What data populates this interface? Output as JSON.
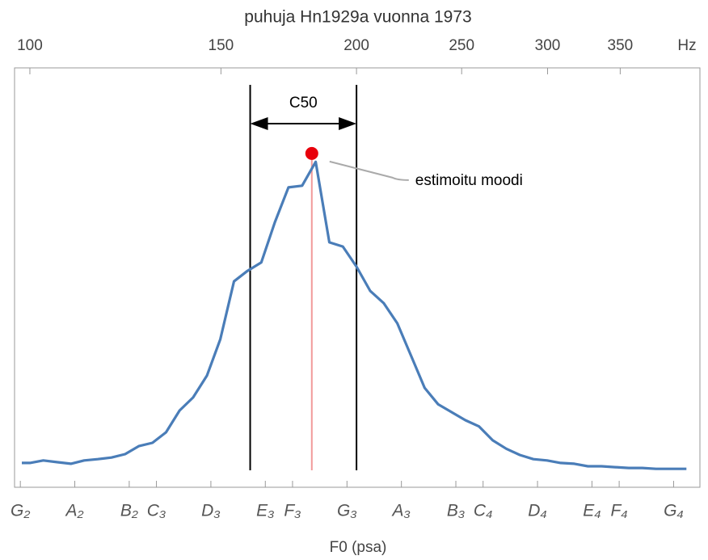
{
  "chart_data": {
    "type": "line",
    "title": "puhuja Hn1929a vuonna 1973",
    "x_label": "F0 (psa)",
    "x2_unit_label": "Hz",
    "log_x": true,
    "color": "#4a7db8",
    "x": [
      98.3,
      100,
      102.9,
      105.9,
      109.1,
      112.2,
      115.5,
      118.9,
      122.4,
      126.0,
      129.7,
      133.5,
      137.4,
      141.4,
      145.6,
      149.8,
      154.2,
      158.7,
      163.4,
      168.2,
      173.1,
      178.2,
      183.4,
      188.8,
      194.3,
      200,
      205.9,
      211.9,
      218.1,
      224.5,
      231.1,
      237.8,
      244.8,
      252.0,
      259.4,
      267.0,
      274.8,
      282.8,
      291.1,
      299.7,
      308.4,
      317.5,
      326.8,
      336.4,
      346.2,
      356.4,
      366.8,
      377.6,
      388.6,
      400,
      402.8
    ],
    "values": [
      0.058,
      0.058,
      0.064,
      0.06,
      0.056,
      0.064,
      0.067,
      0.071,
      0.079,
      0.098,
      0.106,
      0.131,
      0.183,
      0.214,
      0.266,
      0.353,
      0.491,
      0.516,
      0.536,
      0.632,
      0.715,
      0.719,
      0.776,
      0.584,
      0.574,
      0.526,
      0.468,
      0.439,
      0.391,
      0.314,
      0.237,
      0.198,
      0.179,
      0.16,
      0.145,
      0.112,
      0.092,
      0.077,
      0.067,
      0.064,
      0.058,
      0.056,
      0.05,
      0.05,
      0.048,
      0.046,
      0.046,
      0.044,
      0.044,
      0.044,
      0.044
    ],
    "xlim": [
      96.8,
      414.5
    ],
    "ylim": [
      0,
      1
    ],
    "x2ticks": [
      100,
      150,
      200,
      250,
      300,
      350
    ],
    "xticks": [
      {
        "value": 98,
        "label": "G₂"
      },
      {
        "value": 110,
        "label": "A₂"
      },
      {
        "value": 123.47,
        "label": "B₂"
      },
      {
        "value": 130.81,
        "label": "C₃"
      },
      {
        "value": 146.83,
        "label": "D₃"
      },
      {
        "value": 164.81,
        "label": "E₃"
      },
      {
        "value": 174.61,
        "label": "F₃"
      },
      {
        "value": 196,
        "label": "G₃"
      },
      {
        "value": 220,
        "label": "A₃"
      },
      {
        "value": 246.94,
        "label": "B₃"
      },
      {
        "value": 261.63,
        "label": "C₄"
      },
      {
        "value": 293.66,
        "label": "D₄"
      },
      {
        "value": 329.63,
        "label": "E₄"
      },
      {
        "value": 349.23,
        "label": "F₄"
      },
      {
        "value": 392,
        "label": "G₄"
      }
    ],
    "c50": {
      "label": "C50",
      "range": [
        159.6,
        200
      ]
    },
    "mode": {
      "x": 181.9,
      "y": 0.796,
      "label": "estimoitu moodi",
      "color": "#e8000b",
      "line_color": "#f29a9a"
    }
  }
}
